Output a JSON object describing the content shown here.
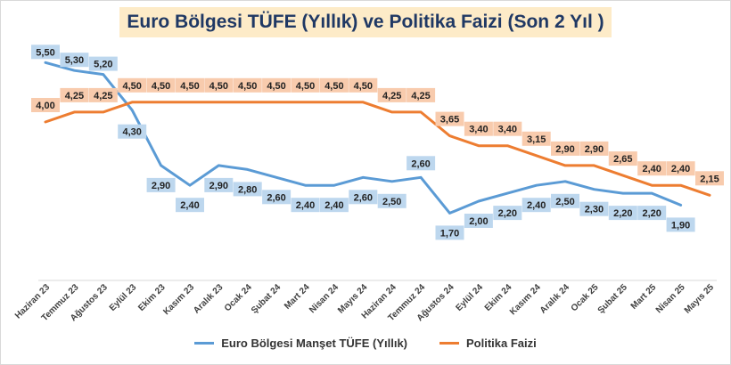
{
  "chart_data": {
    "type": "line",
    "title": "Euro Bölgesi TÜFE (Yıllık) ve Politika Faizi (Son 2 Yıl )",
    "categories": [
      "Haziran 23",
      "Temmuz 23",
      "Ağustos 23",
      "Eylül 23",
      "Ekim 23",
      "Kasım 23",
      "Aralık 23",
      "Ocak 24",
      "Şubat 24",
      "Mart 24",
      "Nisan 24",
      "Mayıs 24",
      "Haziran 24",
      "Temmuz 24",
      "Ağustos 24",
      "Eylül 24",
      "Ekim 24",
      "Kasım 24",
      "Aralık 24",
      "Ocak 25",
      "Şubat 25",
      "Mart 25",
      "Nisan 25",
      "Mayıs 25"
    ],
    "series": [
      {
        "name": "Euro Bölgesi Manşet TÜFE (Yıllık)",
        "color": "#5b9bd5",
        "label_bg": "#bdd7ee",
        "values": [
          5.5,
          5.3,
          5.2,
          4.3,
          2.9,
          2.4,
          2.9,
          2.8,
          2.6,
          2.4,
          2.4,
          2.6,
          2.5,
          2.6,
          1.7,
          2.0,
          2.2,
          2.4,
          2.5,
          2.3,
          2.2,
          2.2,
          1.9,
          null
        ],
        "labels": [
          "5,50",
          "5,30",
          "5,20",
          "4,30",
          "2,90",
          "2,40",
          "2,90",
          "2,80",
          "2,60",
          "2,40",
          "2,40",
          "2,60",
          "2,50",
          "2,60",
          "1,70",
          "2,00",
          "2,20",
          "2,40",
          "2,50",
          "2,30",
          "2,20",
          "2,20",
          "1,90",
          ""
        ]
      },
      {
        "name": "Politika Faizi",
        "color": "#ed7d31",
        "label_bg": "#f8cbad",
        "values": [
          4.0,
          4.25,
          4.25,
          4.5,
          4.5,
          4.5,
          4.5,
          4.5,
          4.5,
          4.5,
          4.5,
          4.5,
          4.25,
          4.25,
          3.65,
          3.4,
          3.4,
          3.15,
          2.9,
          2.9,
          2.65,
          2.4,
          2.4,
          2.15
        ],
        "labels": [
          "4,00",
          "4,25",
          "4,25",
          "4,50",
          "4,50",
          "4,50",
          "4,50",
          "4,50",
          "4,50",
          "4,50",
          "4,50",
          "4,50",
          "4,25",
          "4,25",
          "3,65",
          "3,40",
          "3,40",
          "3,15",
          "2,90",
          "2,90",
          "2,65",
          "2,40",
          "2,40",
          "2,15"
        ]
      }
    ],
    "ylim": [
      0,
      6
    ],
    "grid": false,
    "legend_position": "bottom"
  }
}
